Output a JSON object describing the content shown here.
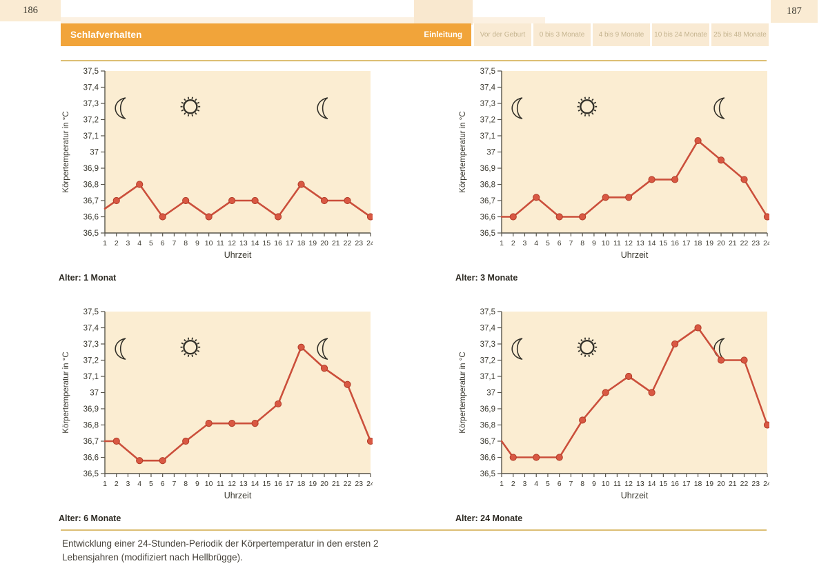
{
  "page": {
    "left_number": "186",
    "right_number": "187"
  },
  "header": {
    "title": "Schlafverhalten",
    "active_tab": "Einleitung",
    "tabs": [
      "Vor der Geburt",
      "0 bis 3 Monate",
      "4 bis 9 Monate",
      "10 bis 24 Monate",
      "25 bis 48 Monate"
    ]
  },
  "caption": "Entwicklung einer 24-Stunden-Periodik der Körpertemperatur in den ersten 2 Lebensjahren (modifiziert nach Hellbrügge).",
  "colors": {
    "accent_orange": "#F1A43A",
    "rule_gold": "#DCBE74",
    "plot_bg": "#FBEDD2",
    "line_red": "#CB4F3B",
    "marker_fill": "#D95843",
    "marker_stroke": "#B13C28",
    "axis": "#57544a",
    "tick_text": "#3a382f",
    "icon": "#33312a"
  },
  "axes": {
    "ylabel": "Körpertemperatur in °C",
    "xlabel": "Uhrzeit",
    "ylim": [
      36.5,
      37.5
    ],
    "yticks": [
      "37,5",
      "37,4",
      "37,3",
      "37,2",
      "37,1",
      "37",
      "36,9",
      "36,8",
      "36,7",
      "36,6",
      "36,5"
    ],
    "xticks": [
      1,
      2,
      3,
      4,
      5,
      6,
      7,
      8,
      9,
      10,
      11,
      12,
      13,
      14,
      15,
      16,
      17,
      18,
      19,
      20,
      21,
      22,
      23,
      24
    ]
  },
  "chart_icons": [
    {
      "name": "moon",
      "hour": 2.4,
      "temp": 37.27
    },
    {
      "name": "sun",
      "hour": 8.4,
      "temp": 37.28
    },
    {
      "name": "moon",
      "hour": 19.9,
      "temp": 37.27
    }
  ],
  "chart_data": [
    {
      "type": "line",
      "title": "Alter: 1 Monat",
      "xlabel": "Uhrzeit",
      "ylabel": "Körpertemperatur in °C",
      "ylim": [
        36.5,
        37.5
      ],
      "x": [
        1,
        2,
        4,
        6,
        8,
        10,
        12,
        14,
        16,
        18,
        20,
        22,
        24
      ],
      "y": [
        36.65,
        36.7,
        36.8,
        36.6,
        36.7,
        36.6,
        36.7,
        36.7,
        36.6,
        36.8,
        36.7,
        36.7,
        36.6
      ],
      "marker_start_index": 1
    },
    {
      "type": "line",
      "title": "Alter: 3 Monate",
      "xlabel": "Uhrzeit",
      "ylabel": "Körpertemperatur in °C",
      "ylim": [
        36.5,
        37.5
      ],
      "x": [
        1,
        2,
        4,
        6,
        8,
        10,
        12,
        14,
        16,
        18,
        20,
        22,
        24
      ],
      "y": [
        36.6,
        36.6,
        36.72,
        36.6,
        36.6,
        36.72,
        36.72,
        36.83,
        36.83,
        37.07,
        36.95,
        36.83,
        36.6
      ],
      "marker_start_index": 1
    },
    {
      "type": "line",
      "title": "Alter: 6 Monate",
      "xlabel": "Uhrzeit",
      "ylabel": "Körpertemperatur in °C",
      "ylim": [
        36.5,
        37.5
      ],
      "x": [
        1,
        2,
        4,
        6,
        8,
        10,
        12,
        14,
        16,
        18,
        20,
        22,
        24
      ],
      "y": [
        36.7,
        36.7,
        36.58,
        36.58,
        36.7,
        36.81,
        36.81,
        36.81,
        36.93,
        37.28,
        37.15,
        37.05,
        36.7
      ],
      "marker_start_index": 1
    },
    {
      "type": "line",
      "title": "Alter: 24 Monate",
      "xlabel": "Uhrzeit",
      "ylabel": "Körpertemperatur in °C",
      "ylim": [
        36.5,
        37.5
      ],
      "x": [
        1,
        2,
        4,
        6,
        8,
        10,
        12,
        14,
        16,
        18,
        20,
        22,
        24
      ],
      "y": [
        36.7,
        36.6,
        36.6,
        36.6,
        36.83,
        37.0,
        37.1,
        37.0,
        37.3,
        37.4,
        37.2,
        37.2,
        36.8
      ],
      "marker_start_index": 1
    }
  ]
}
